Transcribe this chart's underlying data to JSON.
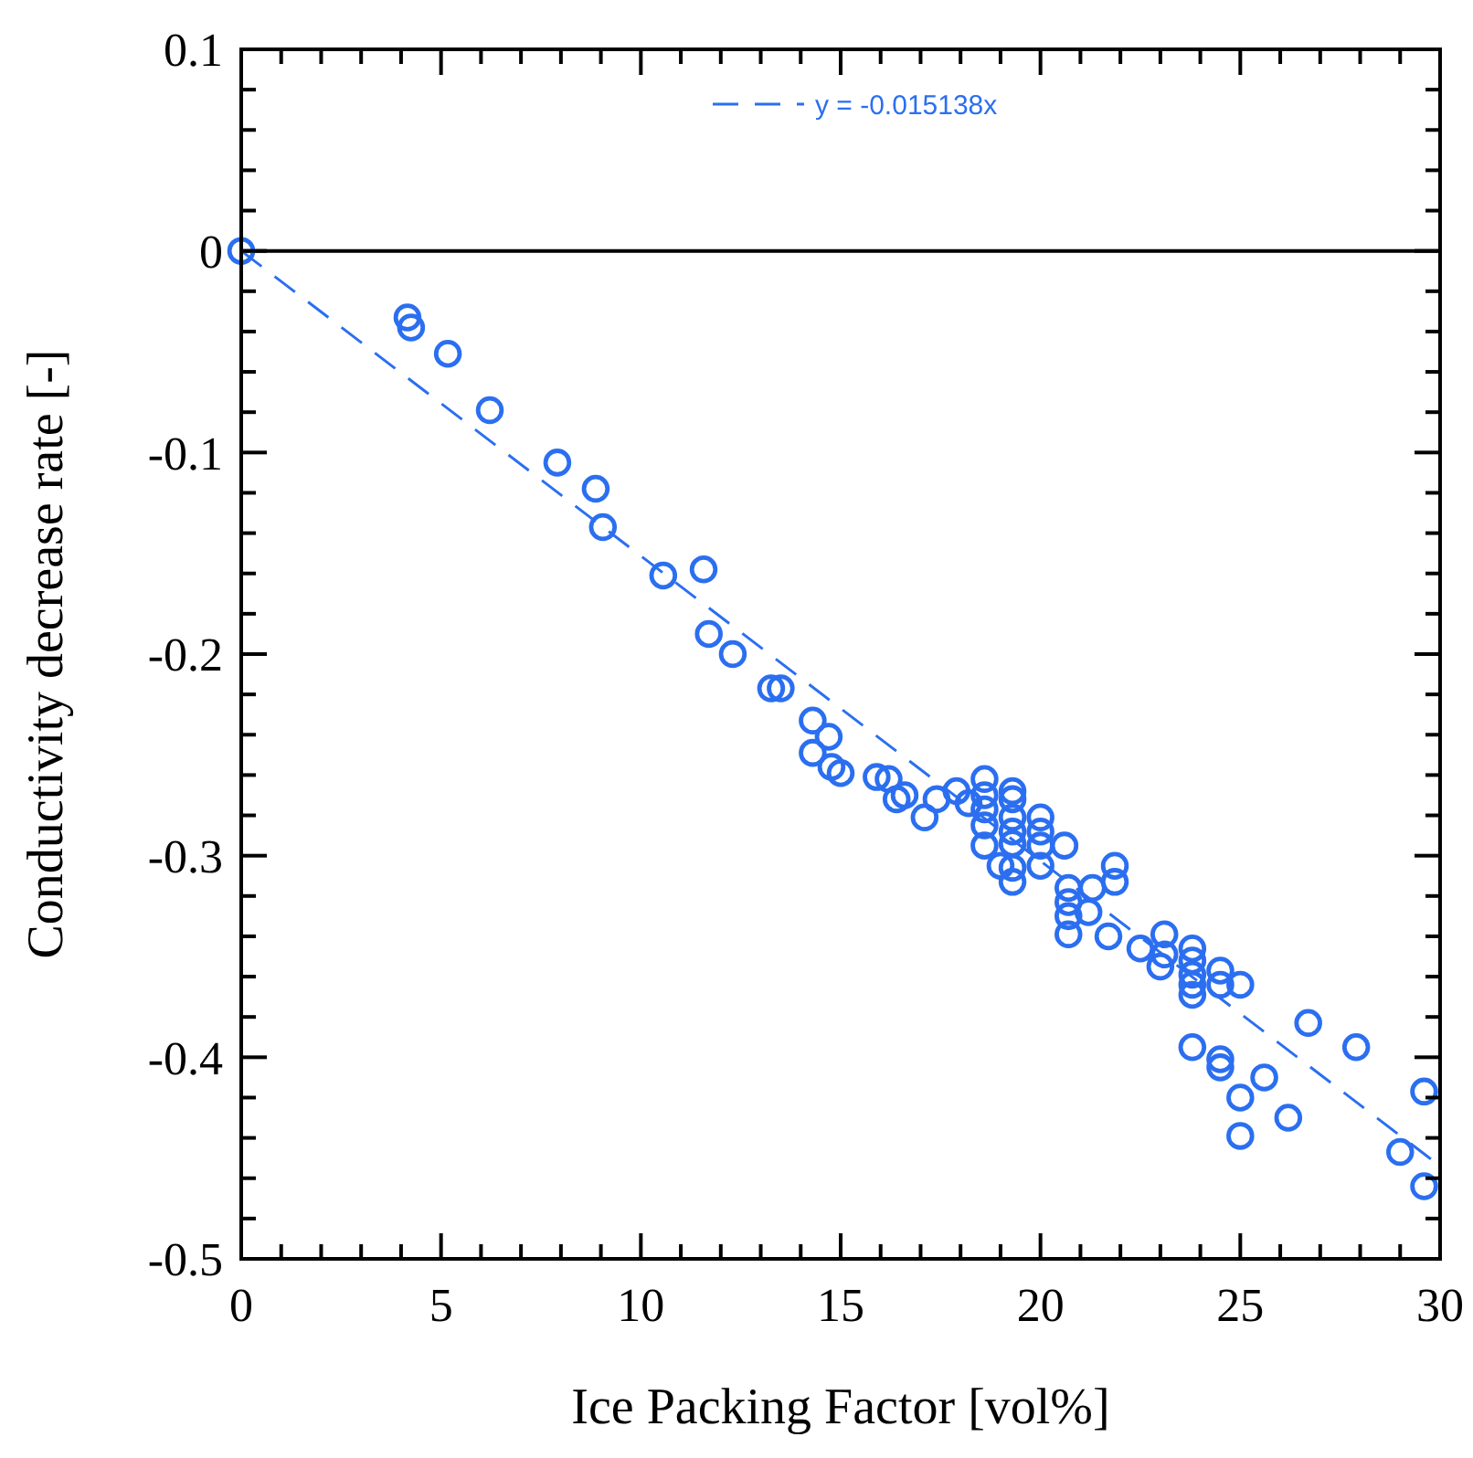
{
  "chart_data": {
    "type": "scatter",
    "xlabel": "Ice Packing Factor [vol%]",
    "ylabel": "Conductivity decrease rate [-]",
    "xlim": [
      0,
      30
    ],
    "xticks": [
      0,
      5,
      10,
      15,
      20,
      25,
      30
    ],
    "ylim": [
      -0.5,
      0.1
    ],
    "yticks": [
      -0.5,
      -0.4,
      -0.3,
      -0.2,
      -0.1,
      0,
      0.1
    ],
    "legend": "top",
    "ref_lines": [
      {
        "axis": "y",
        "value": 0,
        "color": "#000000",
        "line_style": "solid"
      }
    ],
    "series": [
      {
        "marker": "circle",
        "color": "#2b6ff0",
        "x": [
          0,
          4.16,
          4.25,
          5.17,
          6.22,
          7.91,
          8.87,
          9.05,
          10.56,
          11.57,
          11.7,
          12.3,
          13.26,
          13.5,
          14.3,
          14.3,
          14.7,
          14.77,
          15.0,
          15.9,
          16.2,
          16.4,
          16.6,
          17.1,
          17.4,
          17.9,
          18.2,
          18.6,
          18.6,
          18.6,
          18.6,
          18.6,
          19.0,
          19.3,
          19.3,
          19.3,
          19.3,
          19.3,
          19.3,
          19.3,
          20.0,
          20.0,
          20.0,
          20.0,
          20.6,
          20.7,
          20.7,
          20.7,
          20.7,
          21.3,
          21.2,
          21.86,
          21.86,
          21.7,
          22.5,
          23.1,
          23.1,
          23.0,
          23.8,
          23.8,
          23.8,
          23.8,
          23.8,
          24.5,
          24.5,
          25.0,
          26.7,
          23.8,
          24.5,
          24.5,
          25.6,
          25.0,
          26.2,
          25.0,
          27.9,
          29.6,
          29.0,
          29.6
        ],
        "values": [
          0,
          -0.033,
          -0.038,
          -0.051,
          -0.079,
          -0.105,
          -0.118,
          -0.137,
          -0.161,
          -0.158,
          -0.19,
          -0.2,
          -0.217,
          -0.217,
          -0.233,
          -0.249,
          -0.241,
          -0.256,
          -0.259,
          -0.261,
          -0.262,
          -0.272,
          -0.27,
          -0.281,
          -0.272,
          -0.268,
          -0.274,
          -0.262,
          -0.27,
          -0.277,
          -0.285,
          -0.295,
          -0.305,
          -0.268,
          -0.272,
          -0.281,
          -0.288,
          -0.294,
          -0.306,
          -0.313,
          -0.281,
          -0.288,
          -0.295,
          -0.305,
          -0.295,
          -0.316,
          -0.323,
          -0.33,
          -0.339,
          -0.316,
          -0.328,
          -0.305,
          -0.313,
          -0.34,
          -0.346,
          -0.339,
          -0.349,
          -0.355,
          -0.346,
          -0.352,
          -0.359,
          -0.364,
          -0.369,
          -0.357,
          -0.364,
          -0.364,
          -0.383,
          -0.395,
          -0.401,
          -0.405,
          -0.41,
          -0.42,
          -0.43,
          -0.439,
          -0.395,
          -0.417,
          -0.447,
          -0.464
        ]
      },
      {
        "type": "line",
        "marker": "none",
        "name": "y = -0.015138x",
        "color": "#2b6ff0",
        "line_style": "dashed",
        "x": [
          0,
          30
        ],
        "values": [
          0,
          -0.454
        ]
      }
    ]
  }
}
